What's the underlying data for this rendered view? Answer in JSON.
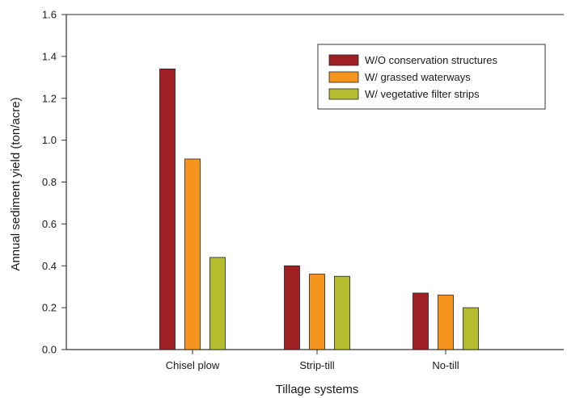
{
  "chart_data": {
    "type": "bar",
    "title": "",
    "xlabel": "Tillage systems",
    "ylabel": "Annual sediment yield (ton/acre)",
    "categories": [
      "Chisel plow",
      "Strip-till",
      "No-till"
    ],
    "ylim": [
      0,
      1.6
    ],
    "yticks": [
      "0.0",
      "0.2",
      "0.4",
      "0.6",
      "0.8",
      "1.0",
      "1.2",
      "1.4",
      "1.6"
    ],
    "series": [
      {
        "name": "W/O conservation structures",
        "color": "#a01f22",
        "values": [
          1.34,
          0.4,
          0.27
        ]
      },
      {
        "name": "W/ grassed waterways",
        "color": "#f7941d",
        "values": [
          0.91,
          0.36,
          0.26
        ]
      },
      {
        "name": "W/ vegetative filter strips",
        "color": "#b5bd2f",
        "values": [
          0.44,
          0.35,
          0.2
        ]
      }
    ],
    "legend_position": "top-right",
    "grid": false
  }
}
